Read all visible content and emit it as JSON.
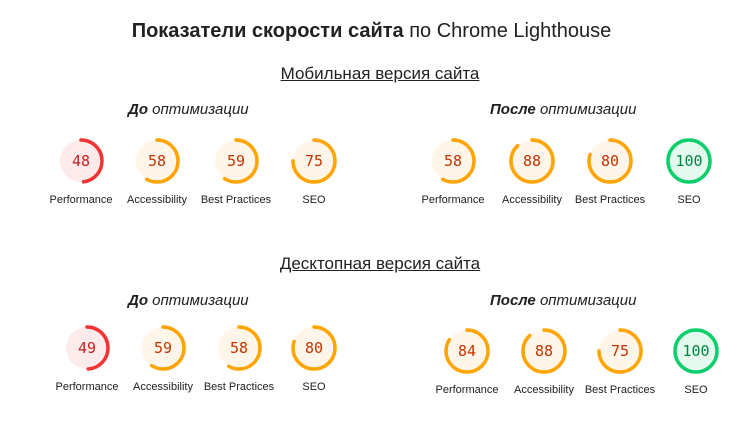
{
  "header": {
    "title_bold": "Показатели скорости сайта",
    "title_rest": " по Chrome Lighthouse"
  },
  "colors": {
    "fail": {
      "arc": "#f33333",
      "fill": "#fdeaea",
      "text": "#c7221f"
    },
    "average": {
      "arc": "#ffa400",
      "fill": "#fff6e9",
      "text": "#c33300"
    },
    "pass": {
      "arc": "#0cce6b",
      "fill": "#e5faef",
      "text": "#018642"
    }
  },
  "sections": [
    {
      "title": "Мобильная версия сайта",
      "groups": [
        {
          "bold": "До",
          "rest": " оптимизации",
          "metrics": [
            {
              "score": 48,
              "label": "Performance",
              "status": "fail"
            },
            {
              "score": 58,
              "label": "Accessibility",
              "status": "average"
            },
            {
              "score": 59,
              "label": "Best Practices",
              "status": "average"
            },
            {
              "score": 75,
              "label": "SEO",
              "status": "average"
            }
          ]
        },
        {
          "bold": "После",
          "rest": " оптимизации",
          "metrics": [
            {
              "score": 58,
              "label": "Performance",
              "status": "average"
            },
            {
              "score": 88,
              "label": "Accessibility",
              "status": "average"
            },
            {
              "score": 80,
              "label": "Best Practices",
              "status": "average"
            },
            {
              "score": 100,
              "label": "SEO",
              "status": "pass"
            }
          ]
        }
      ]
    },
    {
      "title": "Десктопная версия сайта",
      "groups": [
        {
          "bold": "До",
          "rest": " оптимизации",
          "metrics": [
            {
              "score": 49,
              "label": "Performance",
              "status": "fail"
            },
            {
              "score": 59,
              "label": "Accessibility",
              "status": "average"
            },
            {
              "score": 58,
              "label": "Best Practices",
              "status": "average"
            },
            {
              "score": 80,
              "label": "SEO",
              "status": "average"
            }
          ]
        },
        {
          "bold": "После",
          "rest": " оптимизации",
          "metrics": [
            {
              "score": 84,
              "label": "Performance",
              "status": "average"
            },
            {
              "score": 88,
              "label": "Accessibility",
              "status": "average"
            },
            {
              "score": 75,
              "label": "Best Practices",
              "status": "average"
            },
            {
              "score": 100,
              "label": "SEO",
              "status": "pass"
            }
          ]
        }
      ]
    }
  ]
}
